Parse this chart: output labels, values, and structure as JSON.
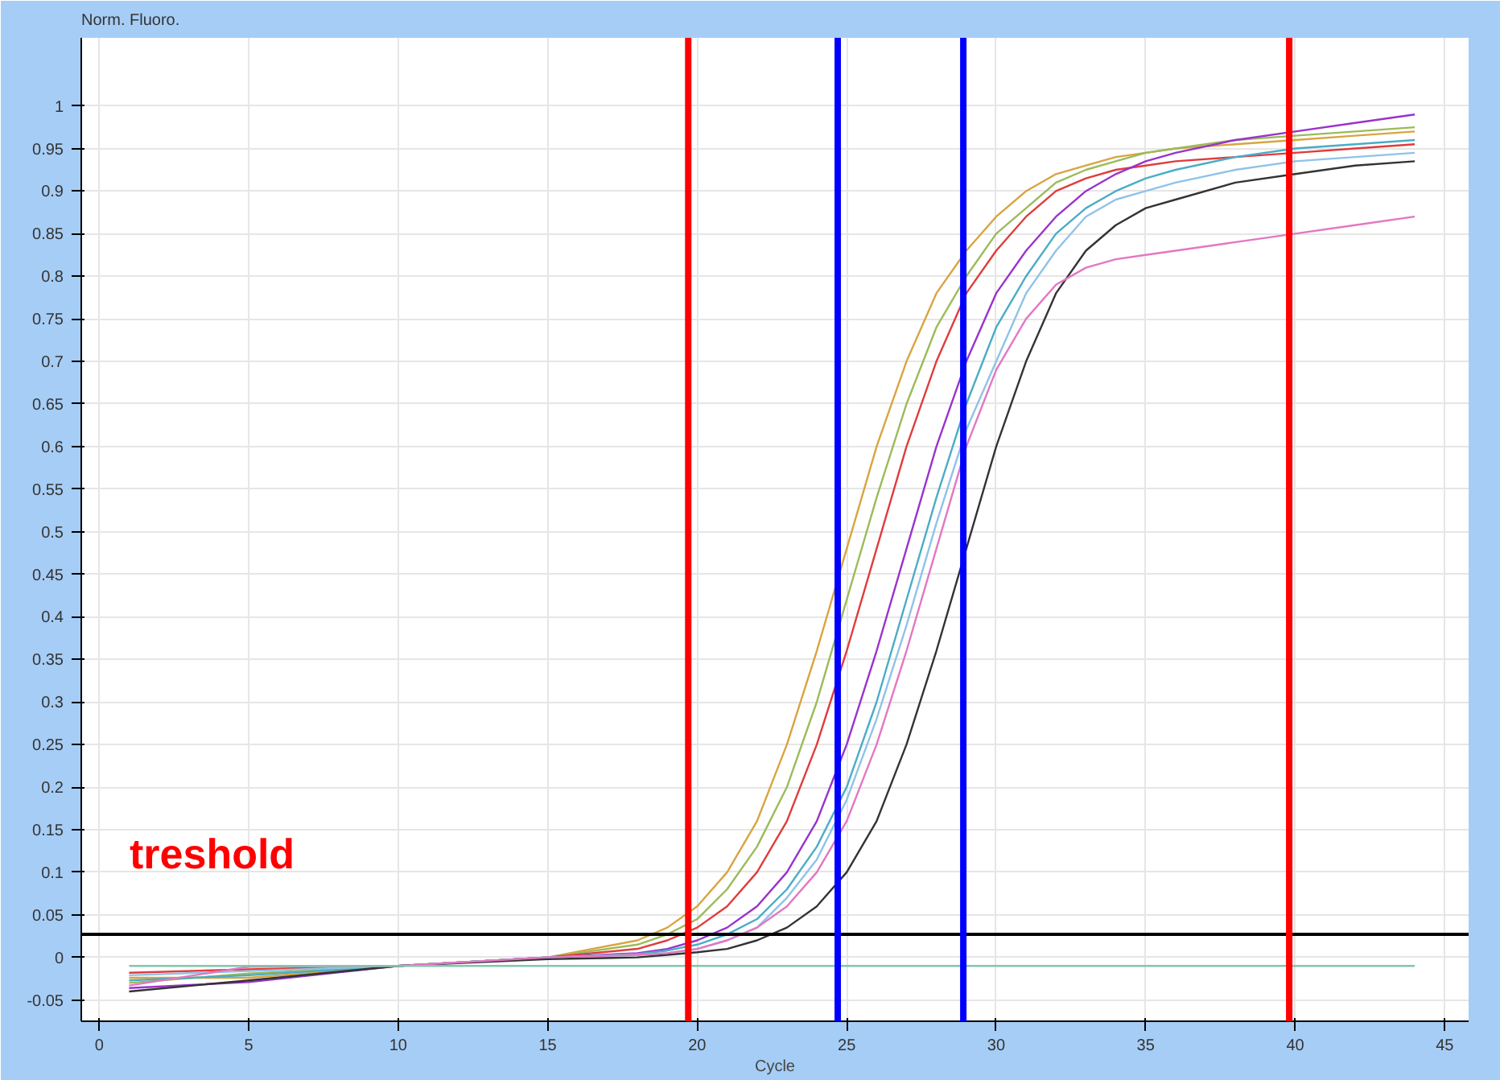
{
  "chart_data": {
    "type": "line",
    "ylabel": "Norm. Fluoro.",
    "xlabel": "Cycle",
    "x": [
      1,
      5,
      10,
      15,
      18,
      19,
      20,
      21,
      22,
      23,
      24,
      25,
      26,
      27,
      28,
      29,
      30,
      31,
      32,
      33,
      34,
      35,
      36,
      38,
      40,
      42,
      44
    ],
    "xlim": [
      -0.6,
      45.8
    ],
    "ylim": [
      -0.075,
      1.08
    ],
    "xticks": [
      0,
      5,
      10,
      15,
      20,
      25,
      30,
      35,
      40,
      45
    ],
    "yticks": [
      -0.05,
      0,
      0.05,
      0.1,
      0.15,
      0.2,
      0.25,
      0.3,
      0.35,
      0.4,
      0.45,
      0.5,
      0.55,
      0.6,
      0.65,
      0.7,
      0.75,
      0.8,
      0.85,
      0.9,
      0.95,
      1
    ],
    "grid": true,
    "series": [
      {
        "color": "#d9a441",
        "values": [
          -0.024,
          -0.024,
          -0.01,
          0.0,
          0.02,
          0.035,
          0.06,
          0.1,
          0.16,
          0.25,
          0.36,
          0.48,
          0.6,
          0.7,
          0.78,
          0.83,
          0.87,
          0.9,
          0.92,
          0.93,
          0.94,
          0.945,
          0.95,
          0.955,
          0.96,
          0.965,
          0.97
        ]
      },
      {
        "color": "#9bbb59",
        "values": [
          -0.03,
          -0.019,
          -0.01,
          0.0,
          0.015,
          0.027,
          0.045,
          0.08,
          0.13,
          0.2,
          0.3,
          0.42,
          0.54,
          0.65,
          0.74,
          0.8,
          0.85,
          0.88,
          0.91,
          0.925,
          0.935,
          0.945,
          0.95,
          0.96,
          0.965,
          0.97,
          0.975
        ]
      },
      {
        "color": "#e03c3c",
        "values": [
          -0.018,
          -0.014,
          -0.01,
          0.0,
          0.01,
          0.02,
          0.035,
          0.06,
          0.1,
          0.16,
          0.25,
          0.36,
          0.48,
          0.6,
          0.7,
          0.78,
          0.83,
          0.87,
          0.9,
          0.915,
          0.925,
          0.93,
          0.935,
          0.94,
          0.945,
          0.95,
          0.955
        ]
      },
      {
        "color": "#9933cc",
        "values": [
          -0.036,
          -0.029,
          -0.01,
          0.0,
          0.005,
          0.01,
          0.02,
          0.035,
          0.06,
          0.1,
          0.16,
          0.25,
          0.36,
          0.48,
          0.6,
          0.7,
          0.78,
          0.83,
          0.87,
          0.9,
          0.92,
          0.935,
          0.945,
          0.96,
          0.97,
          0.98,
          0.99
        ]
      },
      {
        "color": "#4bacc6",
        "values": [
          -0.027,
          -0.021,
          -0.01,
          0.0,
          0.004,
          0.008,
          0.015,
          0.027,
          0.045,
          0.08,
          0.13,
          0.2,
          0.3,
          0.42,
          0.54,
          0.65,
          0.74,
          0.8,
          0.85,
          0.88,
          0.9,
          0.915,
          0.925,
          0.94,
          0.95,
          0.955,
          0.96
        ]
      },
      {
        "color": "#8fc3e8",
        "values": [
          -0.021,
          -0.016,
          -0.01,
          0.0,
          0.003,
          0.005,
          0.01,
          0.02,
          0.035,
          0.07,
          0.115,
          0.185,
          0.28,
          0.39,
          0.51,
          0.62,
          0.7,
          0.78,
          0.83,
          0.87,
          0.89,
          0.9,
          0.91,
          0.925,
          0.935,
          0.94,
          0.945
        ]
      },
      {
        "color": "#333333",
        "values": [
          -0.04,
          -0.027,
          -0.01,
          -0.002,
          0.0,
          0.003,
          0.006,
          0.01,
          0.02,
          0.035,
          0.06,
          0.1,
          0.16,
          0.25,
          0.36,
          0.48,
          0.6,
          0.7,
          0.78,
          0.83,
          0.86,
          0.88,
          0.89,
          0.91,
          0.92,
          0.93,
          0.935
        ]
      },
      {
        "color": "#e377c2",
        "values": [
          -0.033,
          -0.011,
          -0.01,
          0.0,
          0.003,
          0.005,
          0.01,
          0.02,
          0.035,
          0.06,
          0.1,
          0.16,
          0.25,
          0.36,
          0.48,
          0.6,
          0.69,
          0.75,
          0.79,
          0.81,
          0.82,
          0.825,
          0.83,
          0.84,
          0.85,
          0.86,
          0.87
        ]
      },
      {
        "color": "#7fc8a9",
        "x": [
          1,
          44
        ],
        "values": [
          -0.01,
          -0.01
        ]
      }
    ],
    "ref_lines": [
      {
        "axis": "y",
        "value": 0.027,
        "label": "treshold",
        "color": "#000000"
      },
      {
        "axis": "x",
        "value": 19.7,
        "color": "#ff0000"
      },
      {
        "axis": "x",
        "value": 24.7,
        "color": "#0000ff"
      },
      {
        "axis": "x",
        "value": 28.9,
        "color": "#0000ff"
      },
      {
        "axis": "x",
        "value": 39.8,
        "color": "#ff0000"
      }
    ]
  }
}
